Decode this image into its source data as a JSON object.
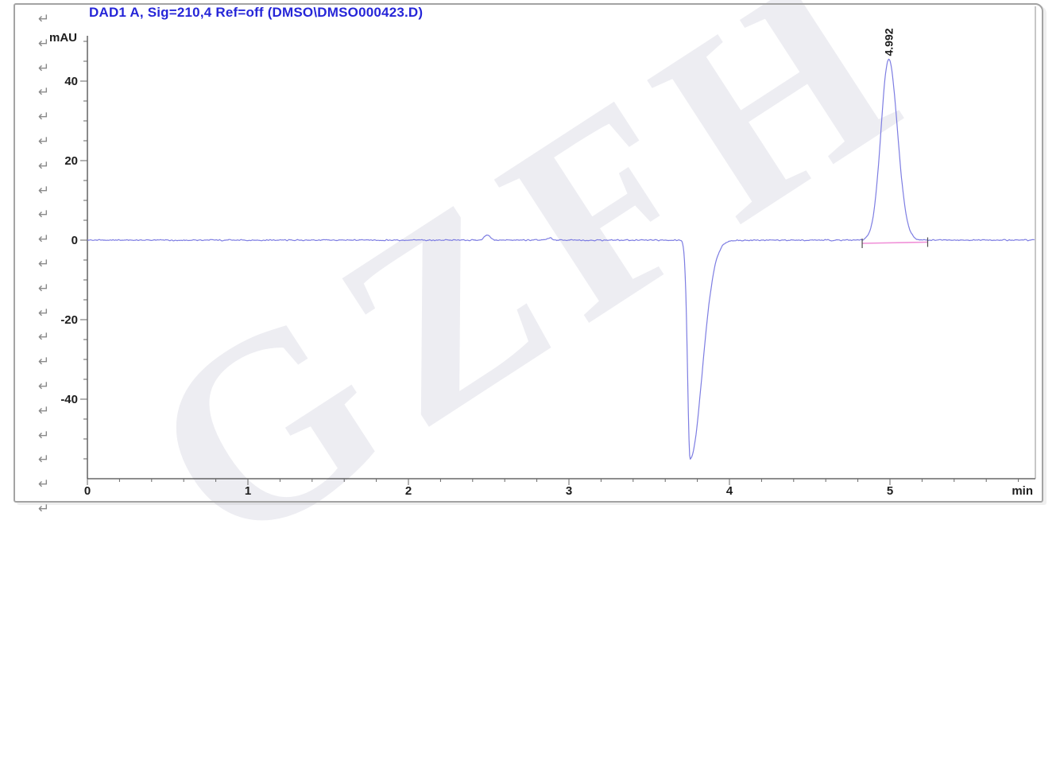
{
  "page": {
    "background": "#ffffff",
    "frame_border_color": "#a3a3a3"
  },
  "watermark": {
    "text": "GZFH",
    "color": "#ededf2"
  },
  "formatting_marks": {
    "glyph": "↵",
    "color": "#8a8a8a",
    "count": 21
  },
  "chart_data": {
    "type": "line",
    "title": "DAD1 A, Sig=210,4 Ref=off (DMSO\\DMSO000423.D)",
    "title_color": "#2626d8",
    "ylabel": "mAU",
    "xlabel": "min",
    "x_ticks": [
      0,
      1,
      2,
      3,
      4,
      5
    ],
    "x_minor_step": 0.2,
    "x_max": 5.9,
    "y_ticks": [
      40,
      20,
      0,
      -20,
      -40
    ],
    "y_minor_step": 5,
    "y_range": [
      -59.5,
      51.5
    ],
    "grid": "off",
    "legend": "none",
    "trace_color": "#7d7de2",
    "axis_color": "#4a4a4a",
    "tick_label_color": "#1d1d1d",
    "noise_amp_mau": 0.22,
    "baseline_mau": 0,
    "peaks": [
      {
        "rt": 2.49,
        "height_mau": 1.3,
        "sigma_left": 0.018,
        "sigma_right": 0.02,
        "label": ""
      },
      {
        "rt": 2.88,
        "height_mau": 0.55,
        "sigma_left": 0.015,
        "sigma_right": 0.015,
        "label": ""
      },
      {
        "rt": 3.755,
        "height_mau": -55.0,
        "sigma_left": 0.016,
        "sigma_right": 0.075,
        "label": ""
      },
      {
        "rt": 4.992,
        "height_mau": 45.5,
        "sigma_left": 0.048,
        "sigma_right": 0.055,
        "label": "4.992"
      }
    ],
    "peak_label_color": "#1a1a1a",
    "integration": {
      "start_rt": 4.827,
      "end_rt": 5.235,
      "start_mau": -0.8,
      "end_mau": -0.5,
      "line_color": "#f090d8",
      "marker_color": "#4d4d4d"
    }
  }
}
